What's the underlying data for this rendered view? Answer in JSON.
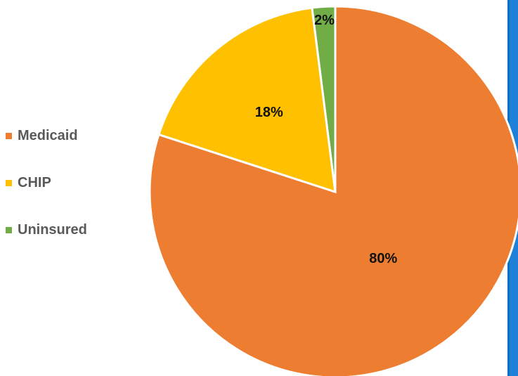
{
  "chart_data": {
    "type": "pie",
    "categories": [
      "Medicaid",
      "CHIP",
      "Uninsured"
    ],
    "values": [
      80,
      18,
      2
    ],
    "labels": [
      "80%",
      "18%",
      "2%"
    ],
    "colors": [
      "#ED7D31",
      "#FFC000",
      "#70AD47"
    ],
    "title": "",
    "legend_position": "left"
  },
  "legend": {
    "items": [
      {
        "label": "Medicaid",
        "color": "#ED7D31"
      },
      {
        "label": "CHIP",
        "color": "#FFC000"
      },
      {
        "label": "Uninsured",
        "color": "#70AD47"
      }
    ]
  }
}
